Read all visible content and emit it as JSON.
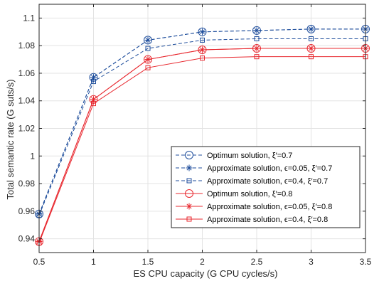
{
  "chart_data": {
    "type": "line",
    "xlabel": "ES CPU capacity (G CPU cycles/s)",
    "ylabel": "Total semantic rate (G suts/s)",
    "xlim": [
      0.5,
      3.5
    ],
    "ylim": [
      0.93,
      1.11
    ],
    "x_ticks": [
      "0.5",
      "1",
      "1.5",
      "2",
      "2.5",
      "3",
      "3.5"
    ],
    "y_ticks": [
      "0.94",
      "0.96",
      "0.98",
      "1",
      "1.02",
      "1.04",
      "1.06",
      "1.08",
      "1.1"
    ],
    "grid": true,
    "legend_position": "lower-right",
    "x": [
      0.5,
      1,
      1.5,
      2,
      2.5,
      3,
      3.5
    ],
    "series": [
      {
        "name": "Optimum solution, ξ′=0.7",
        "values": [
          0.958,
          1.057,
          1.084,
          1.09,
          1.091,
          1.092,
          1.092
        ],
        "color": "#1f4e9c",
        "dash": "dashed",
        "marker": "circle"
      },
      {
        "name": "Approximate solution, ϵ=0.05, ξ′=0.7",
        "values": [
          0.958,
          1.057,
          1.084,
          1.09,
          1.091,
          1.092,
          1.092
        ],
        "color": "#1f4e9c",
        "dash": "dashed",
        "marker": "asterisk"
      },
      {
        "name": "Approximate solution, ϵ=0.4, ξ′=0.7",
        "values": [
          0.957,
          1.054,
          1.078,
          1.084,
          1.085,
          1.085,
          1.085
        ],
        "color": "#1f4e9c",
        "dash": "dashed",
        "marker": "square"
      },
      {
        "name": "Optimum solution, ξ′=0.8",
        "values": [
          0.938,
          1.041,
          1.07,
          1.077,
          1.078,
          1.078,
          1.078
        ],
        "color": "#e8282f",
        "dash": "solid",
        "marker": "circle"
      },
      {
        "name": "Approximate solution, ϵ=0.05, ξ′=0.8",
        "values": [
          0.938,
          1.041,
          1.07,
          1.077,
          1.078,
          1.078,
          1.078
        ],
        "color": "#e8282f",
        "dash": "solid",
        "marker": "asterisk"
      },
      {
        "name": "Approximate solution, ϵ=0.4, ξ′=0.8",
        "values": [
          0.937,
          1.038,
          1.064,
          1.071,
          1.072,
          1.072,
          1.072
        ],
        "color": "#e8282f",
        "dash": "solid",
        "marker": "square"
      }
    ]
  }
}
